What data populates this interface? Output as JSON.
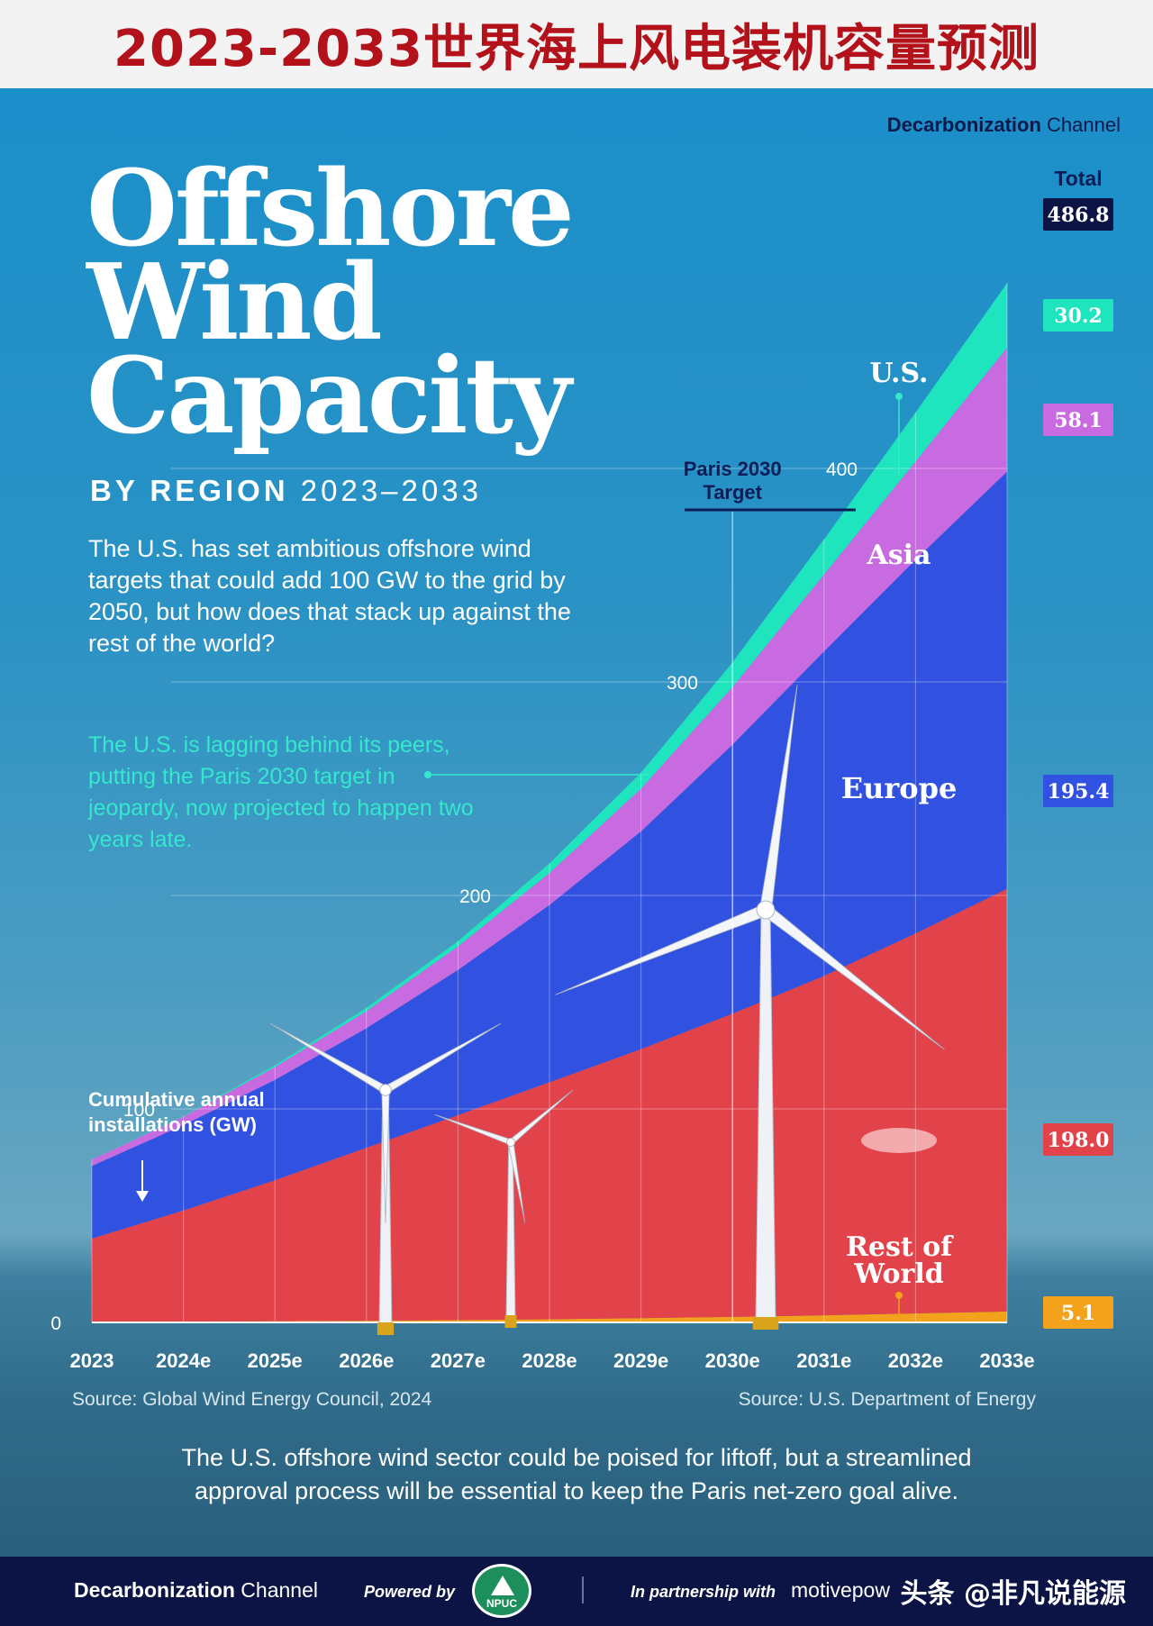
{
  "banner": {
    "title": "2023-2033世界海上风电装机容量预测"
  },
  "brand": {
    "name_bold": "Decarbonization",
    "name_light": " Channel"
  },
  "header": {
    "title_lines": [
      "Offshore",
      "Wind",
      "Capacity"
    ],
    "subtitle_bold": "BY REGION",
    "subtitle_years": " 2023–2033"
  },
  "intro_text": "The U.S. has set ambitious offshore wind targets that could add 100 GW to the grid by 2050, but how does that stack up against the rest of the world?",
  "callout_text": "The U.S. is lagging behind its peers, putting the Paris 2030 target in jeopardy, now projected to happen two years late.",
  "sources": {
    "left": "Source: Global Wind Energy Council, 2024",
    "right": "Source: U.S. Department of Energy"
  },
  "bottom_note_lines": [
    "The U.S. offshore wind sector could be poised for liftoff, but a streamlined",
    "approval process will be essential to keep the Paris net-zero goal alive."
  ],
  "footer": {
    "brand_bold": "Decarbonization",
    "brand_light": " Channel",
    "powered_by": "Powered by",
    "npuc": "NPUC",
    "partnership": "In partnership with",
    "motive": "motivepow",
    "watermark": "头条 @非凡说能源"
  },
  "chart_data": {
    "type": "area",
    "stacked": true,
    "ylabel": "Cumulative annual installations (GW)",
    "x": [
      "2023",
      "2024e",
      "2025e",
      "2026e",
      "2027e",
      "2028e",
      "2029e",
      "2030e",
      "2031e",
      "2032e",
      "2033e"
    ],
    "ylim": [
      0,
      486.8
    ],
    "yticks": [
      0,
      100,
      200,
      300,
      400
    ],
    "grid": true,
    "series": [
      {
        "name": "Rest of World",
        "color": "#f2a21b",
        "values": [
          0.3,
          0.4,
          0.6,
          0.8,
          1.1,
          1.5,
          2.0,
          2.6,
          3.3,
          4.2,
          5.1
        ]
      },
      {
        "name": "",
        "color": "#e2434b",
        "values": [
          39,
          52,
          66,
          81,
          96,
          111,
          126,
          142,
          159,
          178,
          198.0
        ]
      },
      {
        "name": "Europe",
        "color": "#3151e0",
        "values": [
          34,
          40,
          47,
          56,
          68,
          83,
          102,
          126,
          152,
          175,
          195.4
        ]
      },
      {
        "name": "Asia",
        "color": "#c86ae0",
        "values": [
          3,
          4,
          6,
          8,
          11,
          15,
          20,
          27,
          36,
          46,
          58.1
        ]
      },
      {
        "name": "U.S.",
        "color": "#1ee5bd",
        "values": [
          0.1,
          0.3,
          0.8,
          1.5,
          2.5,
          4.5,
          7.5,
          11.5,
          16.5,
          23.0,
          30.2
        ]
      }
    ],
    "totals": {
      "label": "Total",
      "total": "486.8",
      "us": "30.2",
      "asia": "58.1",
      "europe": "195.4",
      "china": "198.0",
      "row": "5.1"
    },
    "annotations": {
      "paris_target": [
        "Paris 2030",
        "Target"
      ],
      "region_labels": {
        "us": "U.S.",
        "asia": "Asia",
        "europe": "Europe",
        "row": [
          "Rest of",
          "World"
        ]
      }
    }
  }
}
